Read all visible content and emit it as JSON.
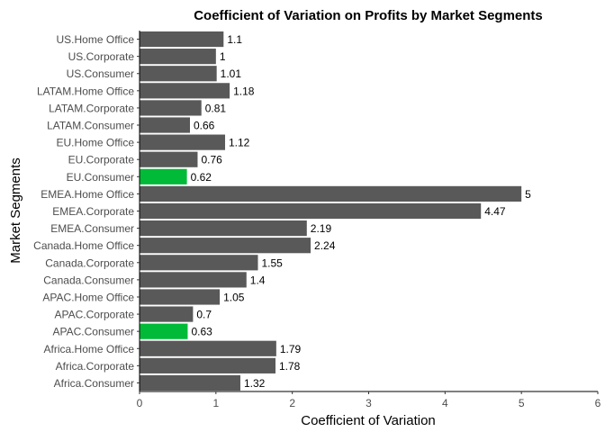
{
  "chart_data": {
    "type": "bar",
    "orientation": "horizontal",
    "title": "Coefficient of Variation on Profits by Market Segments",
    "xlabel": "Coefficient of Variation",
    "ylabel": "Market Segments",
    "xlim": [
      0,
      6
    ],
    "xticks": [
      0,
      1,
      2,
      3,
      4,
      5,
      6
    ],
    "grid": false,
    "legend": "none",
    "colors": {
      "default": "#595959",
      "highlight": "#00ba38"
    },
    "categories": [
      "US.Home Office",
      "US.Corporate",
      "US.Consumer",
      "LATAM.Home Office",
      "LATAM.Corporate",
      "LATAM.Consumer",
      "EU.Home Office",
      "EU.Corporate",
      "EU.Consumer",
      "EMEA.Home Office",
      "EMEA.Corporate",
      "EMEA.Consumer",
      "Canada.Home Office",
      "Canada.Corporate",
      "Canada.Consumer",
      "APAC.Home Office",
      "APAC.Corporate",
      "APAC.Consumer",
      "Africa.Home Office",
      "Africa.Corporate",
      "Africa.Consumer"
    ],
    "values": [
      1.1,
      1,
      1.01,
      1.18,
      0.81,
      0.66,
      1.12,
      0.76,
      0.62,
      5,
      4.47,
      2.19,
      2.24,
      1.55,
      1.4,
      1.05,
      0.7,
      0.63,
      1.79,
      1.78,
      1.32
    ],
    "highlighted": [
      "EU.Consumer",
      "APAC.Consumer"
    ]
  }
}
